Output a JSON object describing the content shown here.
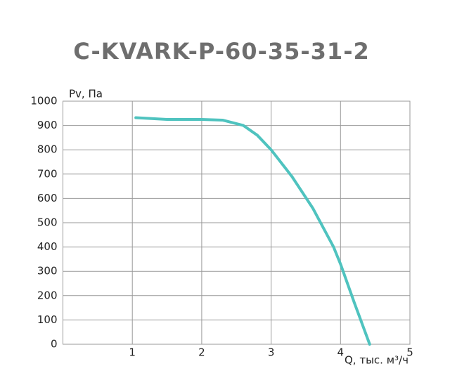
{
  "chart_data": {
    "type": "line",
    "title": "C-KVARK-P-60-35-31-2",
    "y_label": "Pv, Па",
    "x_label": "Q, тыс. м³/ч",
    "x": [
      1.05,
      1.5,
      2.0,
      2.3,
      2.6,
      2.8,
      3.0,
      3.3,
      3.6,
      3.9,
      4.0,
      4.2,
      4.42
    ],
    "series": [
      {
        "color": "#4fc3bf",
        "values": [
          932,
          925,
          925,
          922,
          900,
          860,
          800,
          690,
          560,
          400,
          330,
          170,
          0
        ]
      }
    ],
    "xlim": [
      0,
      5
    ],
    "xticks": [
      1,
      2,
      3,
      4,
      5
    ],
    "ylim": [
      0,
      1000
    ],
    "yticks": [
      0,
      100,
      200,
      300,
      400,
      500,
      600,
      700,
      800,
      900,
      1000
    ],
    "grid": true
  }
}
